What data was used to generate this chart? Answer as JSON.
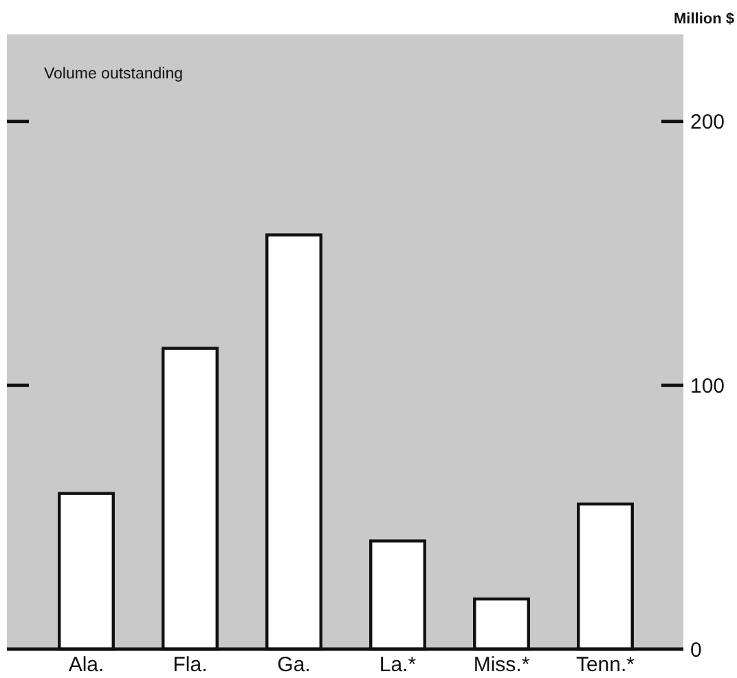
{
  "chart_data": {
    "type": "bar",
    "title": "Volume outstanding",
    "ylabel": "Million $",
    "categories": [
      "Ala.",
      "Fla.",
      "Ga.",
      "La.*",
      "Miss.*",
      "Tenn.*"
    ],
    "values": [
      59,
      114,
      157,
      41,
      19,
      55
    ],
    "color": "#ffffff",
    "ylim": [
      0,
      233
    ],
    "yticks": [
      0,
      100,
      200
    ],
    "grid": false
  }
}
